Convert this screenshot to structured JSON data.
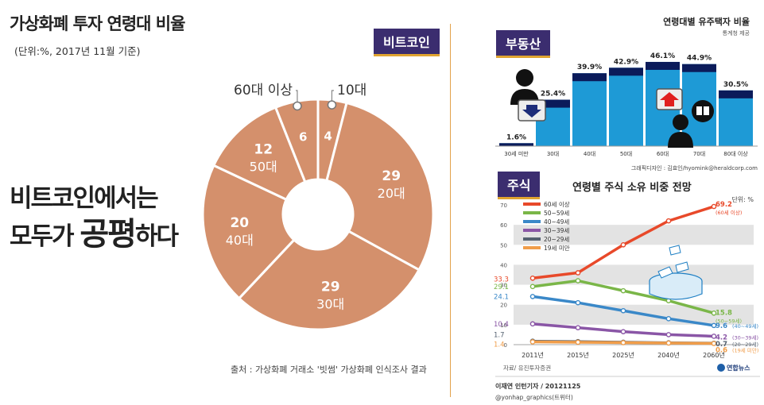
{
  "header": {
    "title": "가상화폐 투자 연령대 비율",
    "unit": "(단위:%, 2017년 11월 기준)"
  },
  "headline": {
    "line1": "비트코인에서는",
    "line2_pre": "모두가 ",
    "line2_big": "공평",
    "line2_post": "하다"
  },
  "tags": {
    "bitcoin": "비트코인",
    "real_estate": "부동산",
    "stocks": "주식"
  },
  "bitcoin_source": "출처 : 가상화폐 거래소 '빗썸' 가상화폐 인식조사 결과",
  "real_estate": {
    "title": "연령대별 유주택자 비율",
    "source_small": "통계청 제공",
    "credit": "그래픽디자인 : 김효인/hyomink@heraldcorp.com"
  },
  "stocks": {
    "title": "연령별 주식 소유 비중 전망",
    "unit": "단위: %",
    "source": "자료/ 유진투자증권",
    "reporter": "이재연 인턴기자 / 20121125",
    "handle": "@yonhap_graphics(트위터)",
    "brand": "연합뉴스"
  },
  "colors": {
    "donut": "#d4906c",
    "donut_text": "#ffffff",
    "tag_bg": "#3b2d6f",
    "tag_border": "#e0a430",
    "bar": "#1e9ad6",
    "bar_top": "#0b1b5a",
    "band": "#e3e3e3"
  },
  "chart_data": [
    {
      "type": "pie",
      "title": "가상화폐 투자 연령대 비율",
      "categories": [
        "10대",
        "20대",
        "30대",
        "40대",
        "50대",
        "60대 이상"
      ],
      "values": [
        4,
        29,
        29,
        20,
        12,
        6
      ],
      "labels": [
        {
          "value": "4",
          "name": ""
        },
        {
          "value": "29",
          "name": "20대"
        },
        {
          "value": "29",
          "name": "30대"
        },
        {
          "value": "20",
          "name": "40대"
        },
        {
          "value": "12",
          "name": "50대"
        },
        {
          "value": "6",
          "name": ""
        }
      ],
      "callouts": [
        "10대",
        "60대 이상"
      ]
    },
    {
      "type": "bar",
      "title": "연령대별 유주택자 비율",
      "categories": [
        "30세 미만",
        "30대",
        "40대",
        "50대",
        "60대",
        "70대",
        "80대 이상"
      ],
      "values": [
        1.6,
        25.4,
        39.9,
        42.9,
        46.1,
        44.9,
        30.5
      ],
      "value_labels": [
        "1.6%",
        "25.4%",
        "39.9%",
        "42.9%",
        "46.1%",
        "44.9%",
        "30.5%"
      ],
      "ylim": [
        0,
        50
      ]
    },
    {
      "type": "line",
      "title": "연령별 주식 소유 비중 전망",
      "x": [
        "2011년",
        "2015년",
        "2025년",
        "2040년",
        "2060년"
      ],
      "ylim": [
        0,
        70
      ],
      "yticks": [
        0,
        10,
        20,
        30,
        40,
        50,
        60,
        70
      ],
      "series": [
        {
          "name": "60세 이상",
          "color": "#e8492a",
          "values": [
            33.3,
            36,
            50,
            62,
            69.2
          ],
          "start_label": "33.3",
          "end_label": "69.2",
          "end_note": "(60세 이상)"
        },
        {
          "name": "50~59세",
          "color": "#7ab648",
          "values": [
            29.1,
            32,
            27,
            22,
            15.8
          ],
          "start_label": "29.1",
          "end_label": "15.8",
          "end_note": "(50~59세)"
        },
        {
          "name": "40~49세",
          "color": "#3a88c8",
          "values": [
            24.1,
            21,
            17,
            13,
            9.6
          ],
          "start_label": "24.1",
          "end_label": "9.6",
          "end_note": "(40~49세)"
        },
        {
          "name": "30~39세",
          "color": "#8a56a6",
          "values": [
            10.4,
            8.5,
            6.5,
            5,
            4.2
          ],
          "start_label": "10.4",
          "end_label": "4.2",
          "end_note": "(30~39세)"
        },
        {
          "name": "20~29세",
          "color": "#556270",
          "values": [
            1.7,
            1.5,
            1.2,
            0.9,
            0.7
          ],
          "start_label": "1.7",
          "end_label": "0.7",
          "end_note": "(20~29세)"
        },
        {
          "name": "19세 미만",
          "color": "#f09d4a",
          "values": [
            1.4,
            1.2,
            1.0,
            0.8,
            0.6
          ],
          "start_label": "1.4",
          "end_label": "0.6",
          "end_note": "(19세 미만)"
        }
      ]
    }
  ]
}
